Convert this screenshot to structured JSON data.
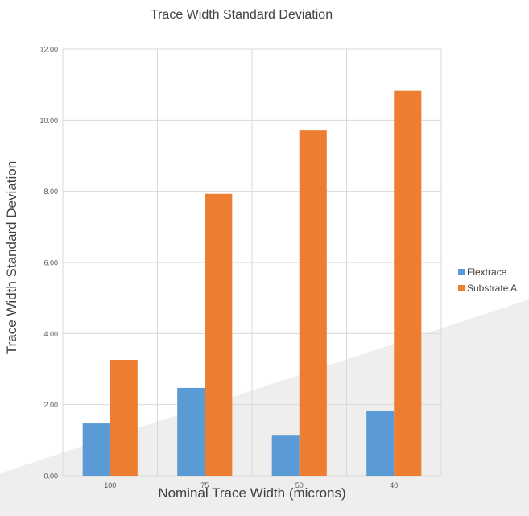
{
  "chart_data": {
    "type": "bar",
    "title": "Trace Width Standard Deviation",
    "xlabel": "Nominal Trace Width (microns)",
    "ylabel": "Trace Width Standard Deviation",
    "categories": [
      "100",
      "75",
      "50",
      "40"
    ],
    "y_ticks": [
      "0.00",
      "2.00",
      "4.00",
      "6.00",
      "8.00",
      "10.00",
      "12.00"
    ],
    "ylim": [
      0,
      12
    ],
    "grid": true,
    "legend_position": "right",
    "series": [
      {
        "name": "Flextrace",
        "color": "#5b9bd5",
        "values": [
          1.47,
          2.47,
          1.15,
          1.82
        ]
      },
      {
        "name": "Substrate A",
        "color": "#ed7d31",
        "values": [
          3.26,
          7.93,
          9.71,
          10.83
        ]
      }
    ]
  }
}
